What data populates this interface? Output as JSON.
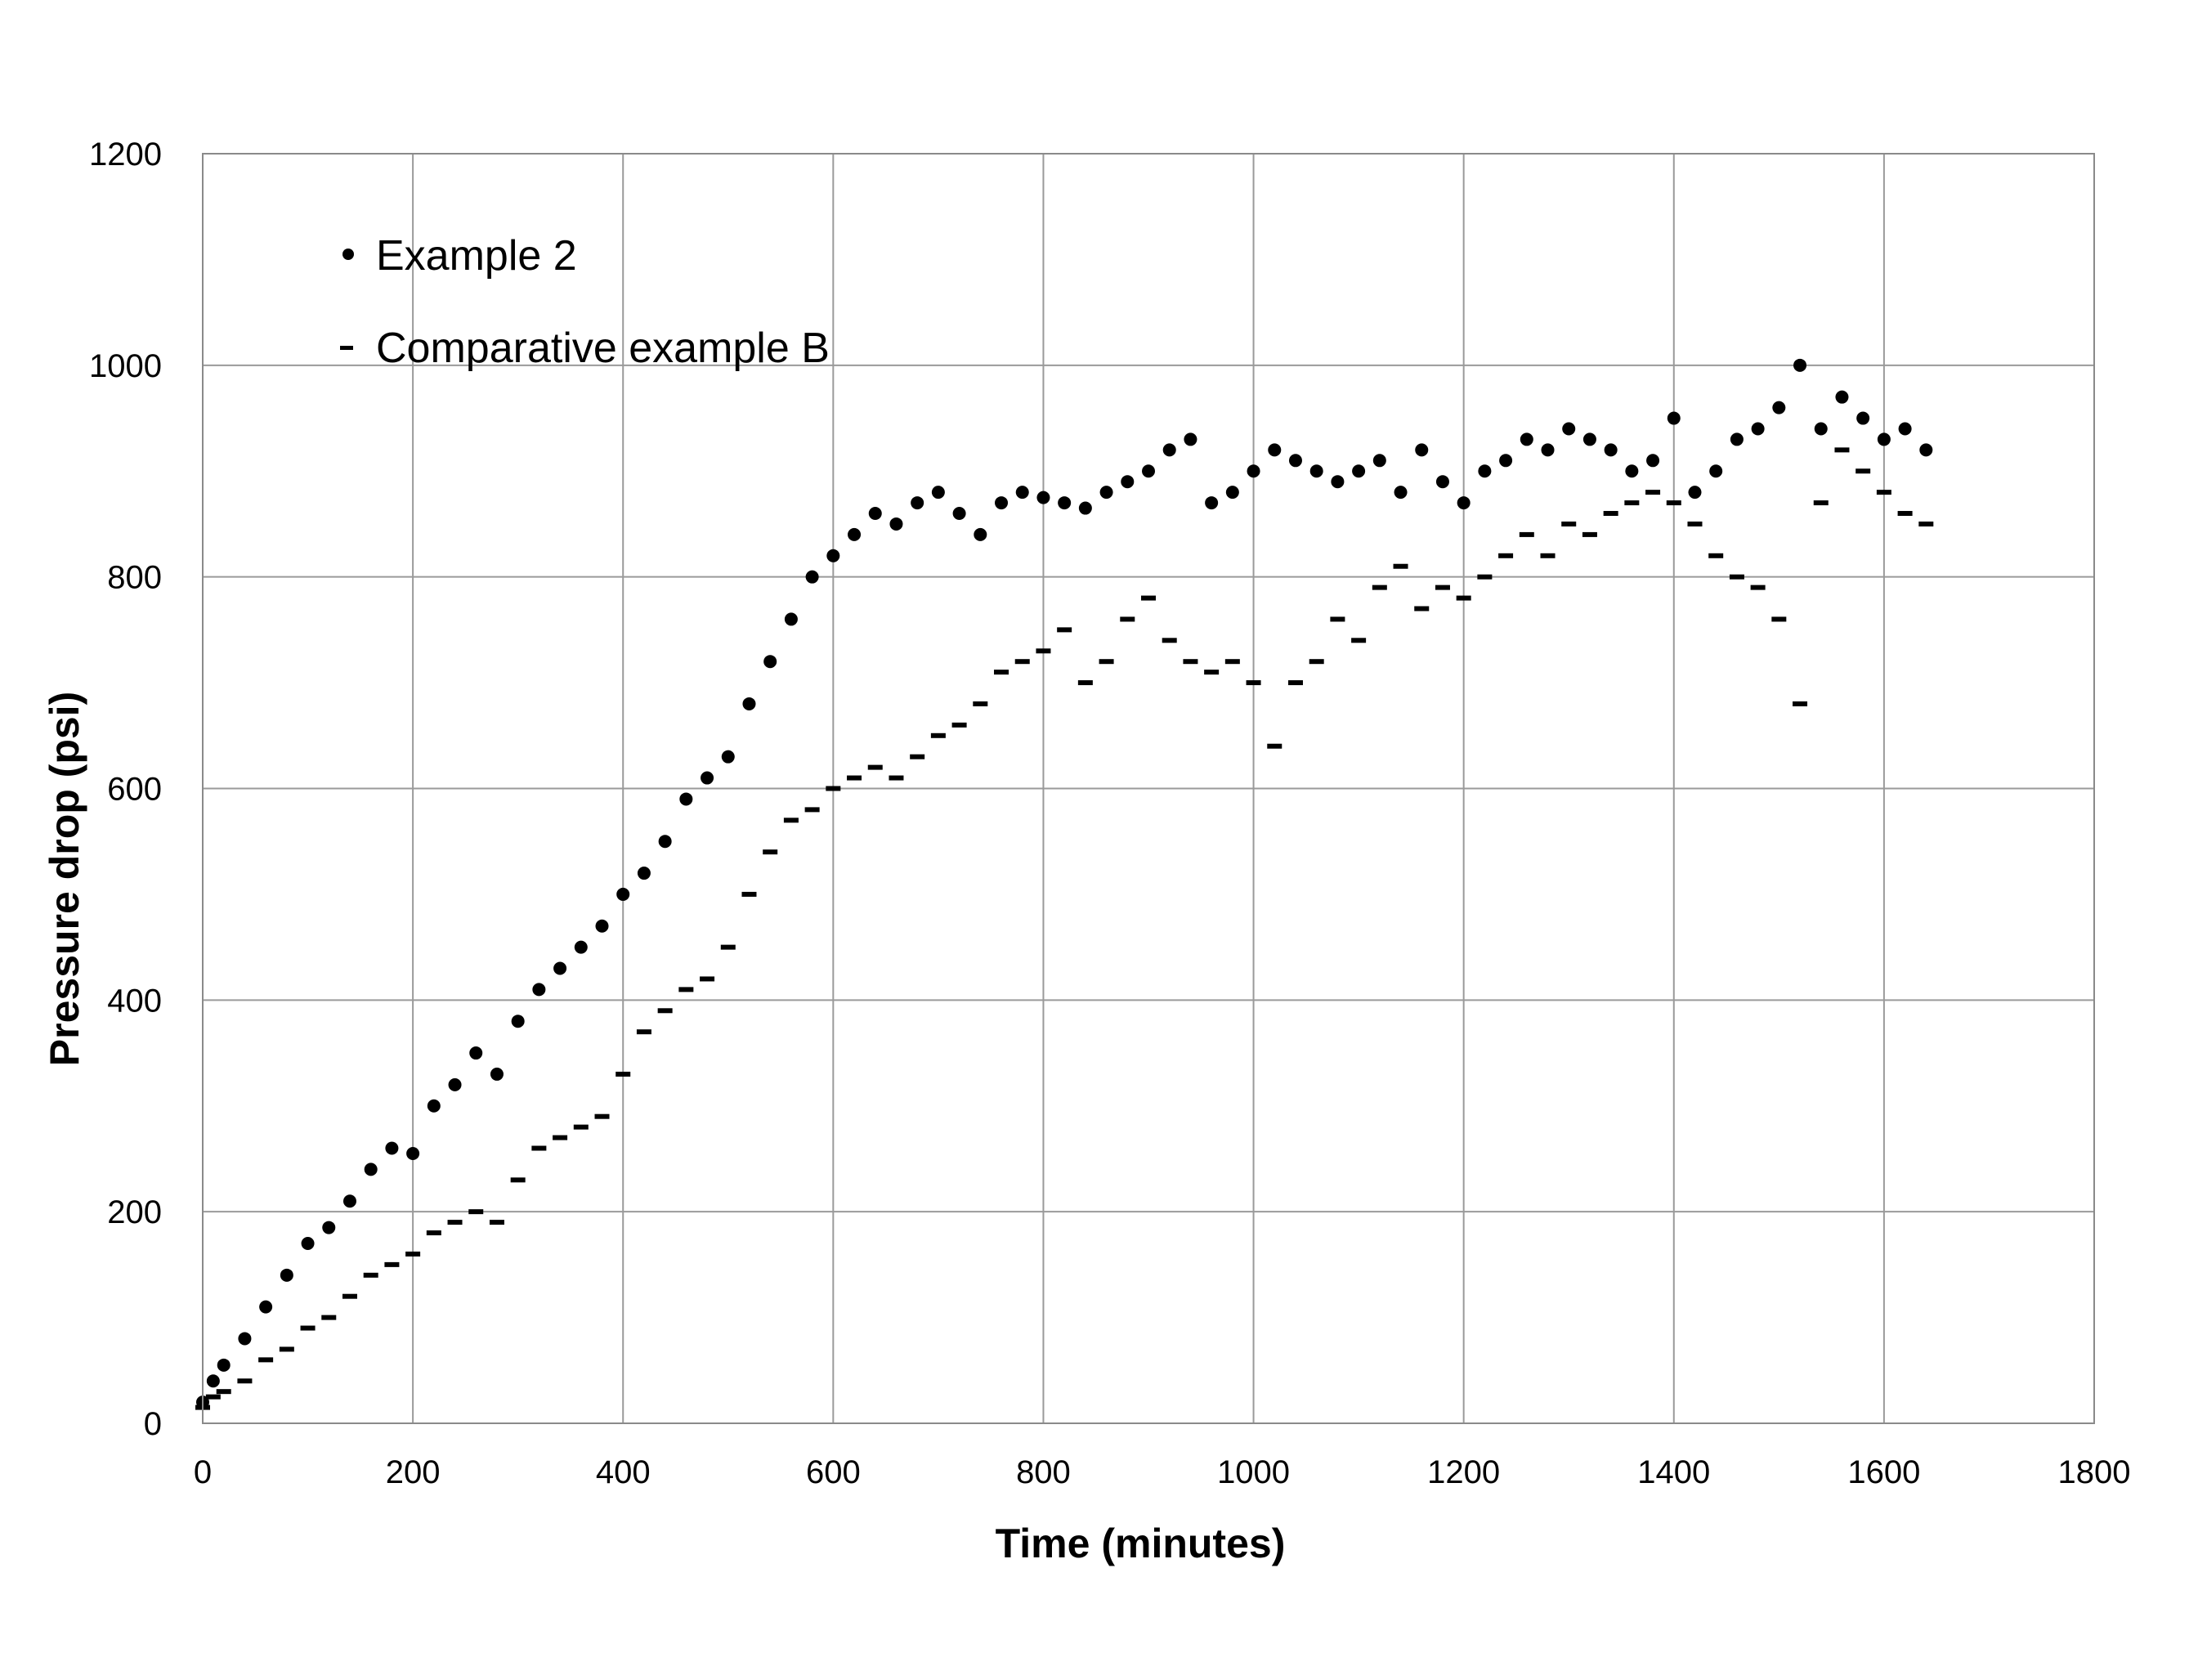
{
  "chart_data": {
    "type": "scatter",
    "title": "",
    "xlabel": "Time (minutes)",
    "ylabel": "Pressure drop (psi)",
    "xlim": [
      0,
      1800
    ],
    "ylim": [
      0,
      1200
    ],
    "x_ticks": [
      0,
      200,
      400,
      600,
      800,
      1000,
      1200,
      1400,
      1600,
      1800
    ],
    "y_ticks": [
      0,
      200,
      400,
      600,
      800,
      1000,
      1200
    ],
    "x_tick_labels": [
      "0",
      "200",
      "400",
      "600",
      "800",
      "1000",
      "1200",
      "1400",
      "1600",
      "1800"
    ],
    "y_tick_labels": [
      "0",
      "200",
      "400",
      "600",
      "800",
      "1000",
      "1200"
    ],
    "grid": true,
    "legend_position": "top-left",
    "series": [
      {
        "name": "Example 2",
        "marker": "dot",
        "color": "#000000",
        "x": [
          0,
          10,
          20,
          40,
          60,
          80,
          100,
          120,
          140,
          160,
          180,
          200,
          220,
          240,
          260,
          280,
          300,
          320,
          340,
          360,
          380,
          400,
          420,
          440,
          460,
          480,
          500,
          520,
          540,
          560,
          580,
          600,
          620,
          640,
          660,
          680,
          700,
          720,
          740,
          760,
          780,
          800,
          820,
          840,
          860,
          880,
          900,
          920,
          940,
          960,
          980,
          1000,
          1020,
          1040,
          1060,
          1080,
          1100,
          1120,
          1140,
          1160,
          1180,
          1200,
          1220,
          1240,
          1260,
          1280,
          1300,
          1320,
          1340,
          1360,
          1380,
          1400,
          1420,
          1440,
          1460,
          1480,
          1500,
          1520,
          1540,
          1560,
          1580,
          1600,
          1620,
          1640
        ],
        "y": [
          20,
          40,
          55,
          80,
          110,
          140,
          170,
          185,
          210,
          240,
          260,
          255,
          300,
          320,
          350,
          330,
          380,
          410,
          430,
          450,
          470,
          500,
          520,
          550,
          590,
          610,
          630,
          680,
          720,
          760,
          800,
          820,
          840,
          860,
          850,
          870,
          880,
          860,
          840,
          870,
          880,
          875,
          870,
          865,
          880,
          890,
          900,
          920,
          930,
          870,
          880,
          900,
          920,
          910,
          900,
          890,
          900,
          910,
          880,
          920,
          890,
          870,
          900,
          910,
          930,
          920,
          940,
          930,
          920,
          900,
          910,
          950,
          880,
          900,
          930,
          940,
          960,
          1000,
          940,
          970,
          950,
          930,
          940,
          920
        ]
      },
      {
        "name": "Comparative example B",
        "marker": "dash",
        "color": "#000000",
        "x": [
          0,
          10,
          20,
          40,
          60,
          80,
          100,
          120,
          140,
          160,
          180,
          200,
          220,
          240,
          260,
          280,
          300,
          320,
          340,
          360,
          380,
          400,
          420,
          440,
          460,
          480,
          500,
          520,
          540,
          560,
          580,
          600,
          620,
          640,
          660,
          680,
          700,
          720,
          740,
          760,
          780,
          800,
          820,
          840,
          860,
          880,
          900,
          920,
          940,
          960,
          980,
          1000,
          1020,
          1040,
          1060,
          1080,
          1100,
          1120,
          1140,
          1160,
          1180,
          1200,
          1220,
          1240,
          1260,
          1280,
          1300,
          1320,
          1340,
          1360,
          1380,
          1400,
          1420,
          1440,
          1460,
          1480,
          1500,
          1520,
          1540,
          1560,
          1580,
          1600,
          1620,
          1640
        ],
        "y": [
          15,
          25,
          30,
          40,
          60,
          70,
          90,
          100,
          120,
          140,
          150,
          160,
          180,
          190,
          200,
          190,
          230,
          260,
          270,
          280,
          290,
          330,
          370,
          390,
          410,
          420,
          450,
          500,
          540,
          570,
          580,
          600,
          610,
          620,
          610,
          630,
          650,
          660,
          680,
          710,
          720,
          730,
          750,
          700,
          720,
          760,
          780,
          740,
          720,
          710,
          720,
          700,
          640,
          700,
          720,
          760,
          740,
          790,
          810,
          770,
          790,
          780,
          800,
          820,
          840,
          820,
          850,
          840,
          860,
          870,
          880,
          870,
          850,
          820,
          800,
          790,
          760,
          680,
          870,
          920,
          900,
          880,
          860,
          850
        ]
      }
    ]
  }
}
